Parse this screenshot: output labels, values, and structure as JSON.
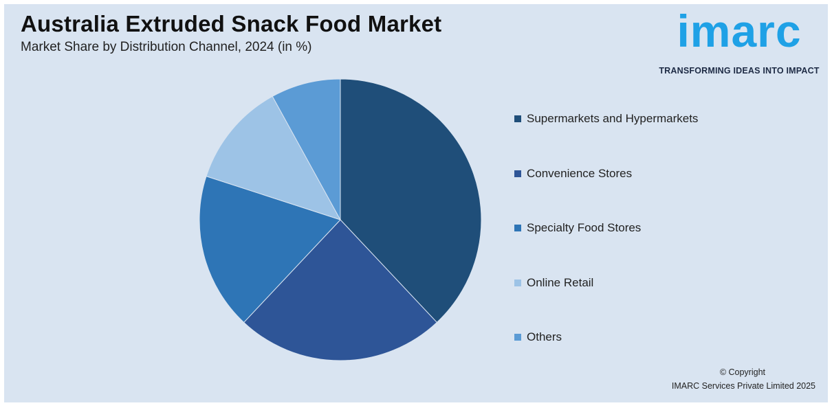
{
  "header": {
    "title": "Australia Extruded Snack Food Market",
    "subtitle": "Market Share by Distribution Channel, 2024 (in %)"
  },
  "logo": {
    "wordmark": "imarc",
    "tagline": "TRANSFORMING IDEAS INTO IMPACT",
    "color": "#1fa1e6"
  },
  "chart_data": {
    "type": "pie",
    "title": "Australia Extruded Snack Food Market",
    "subtitle": "Market Share by Distribution Channel, 2024 (in %)",
    "categories": [
      "Supermarkets and Hypermarkets",
      "Convenience Stores",
      "Specialty Food Stores",
      "Online Retail",
      "Others"
    ],
    "values": [
      38,
      24,
      18,
      12,
      8
    ],
    "colors": [
      "#1f4e79",
      "#2e5597",
      "#2e75b6",
      "#9dc3e6",
      "#5b9bd5"
    ],
    "start_angle_deg": 0,
    "direction": "clockwise",
    "legend_position": "right"
  },
  "footer": {
    "copyright_line1": "© Copyright",
    "copyright_line2": "IMARC Services Private Limited 2025"
  }
}
